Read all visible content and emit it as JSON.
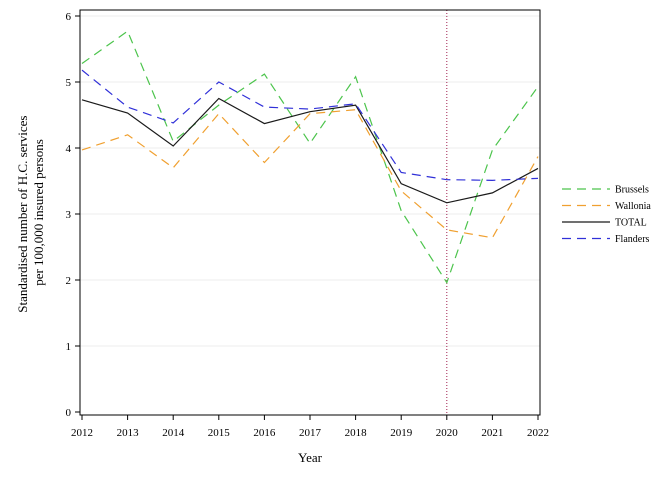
{
  "chart_data": {
    "type": "line",
    "xlabel": "Year",
    "ylabel_lines": [
      "Standardised number of H.C. services",
      "per 100,000 insured persons"
    ],
    "x": [
      2012,
      2013,
      2014,
      2015,
      2016,
      2017,
      2018,
      2019,
      2020,
      2021,
      2022
    ],
    "ylim": [
      0,
      6
    ],
    "yticks": [
      0,
      1,
      2,
      3,
      4,
      5,
      6
    ],
    "grid": "horizontal",
    "legend_position": "right",
    "reference_line": {
      "x": 2020,
      "color": "#a02050",
      "style": "dotted"
    },
    "series": [
      {
        "name": "Brussels",
        "color": "#4cc44c",
        "dash": "9,6",
        "values": [
          5.28,
          5.77,
          4.1,
          4.65,
          5.12,
          4.07,
          5.08,
          3.05,
          1.96,
          3.97,
          4.93
        ]
      },
      {
        "name": "Wallonia",
        "color": "#f0a030",
        "dash": "9,6",
        "values": [
          3.97,
          4.2,
          3.7,
          4.52,
          3.78,
          4.52,
          4.58,
          3.35,
          2.76,
          2.64,
          3.87
        ]
      },
      {
        "name": "TOTAL",
        "color": "#1a1a1a",
        "dash": "",
        "values": [
          4.73,
          4.53,
          4.03,
          4.75,
          4.37,
          4.55,
          4.65,
          3.46,
          3.17,
          3.32,
          3.69
        ]
      },
      {
        "name": "Flanders",
        "color": "#3030d8",
        "dash": "9,6",
        "values": [
          5.18,
          4.62,
          4.38,
          5.0,
          4.62,
          4.59,
          4.67,
          3.63,
          3.52,
          3.51,
          3.54
        ]
      }
    ]
  }
}
